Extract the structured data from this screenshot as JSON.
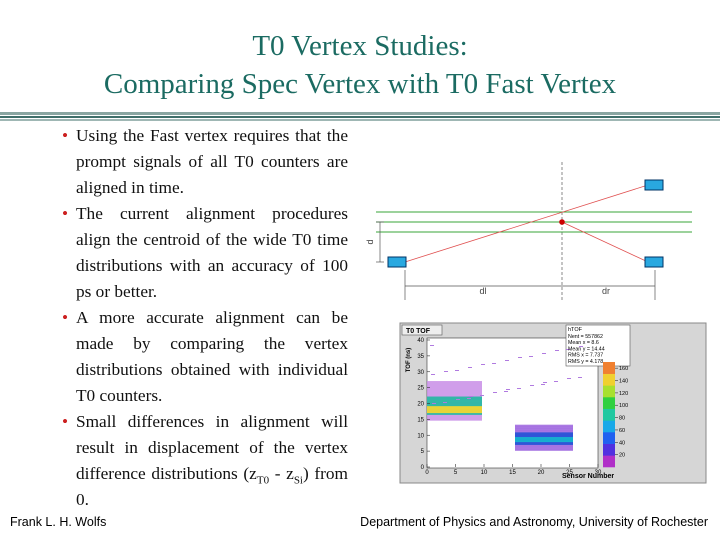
{
  "title": [
    "T0 Vertex Studies:",
    "Comparing Spec Vertex with T0 Fast Vertex"
  ],
  "bullets": [
    [
      {
        "text": "Using the Fast vertex requires that the prompt signals of all T0 counters are aligned in time."
      }
    ],
    [
      {
        "text": "The current alignment procedures align the centroid of the wide T0 time distributions with an accuracy of 100 ps or better."
      }
    ],
    [
      {
        "text": "A more accurate alignment can be made by comparing the vertex distributions obtained with individual T0 counters."
      }
    ],
    [
      {
        "text": "Small differences in alignment will result in displacement of the vertex difference distributions (z"
      },
      {
        "sub": "T0"
      },
      {
        "text": " - z"
      },
      {
        "sub": "Si"
      },
      {
        "text": ") from 0."
      }
    ]
  ],
  "diagram": {
    "d_label": "d",
    "dl_label": "dl",
    "dr_label": "dr"
  },
  "histogram": {
    "title": "T0 TOF",
    "stats_name": "hTOF",
    "stats": [
      "Nent = 557862",
      "Mean x =   8.6",
      "Mean y =  14.44",
      "RMS x =  7.737",
      "RMS y =  4.178"
    ],
    "xlabel": "Sensor Number",
    "ylabel": "TOF (ns)",
    "xlim": [
      0,
      30
    ],
    "xticks": [
      0,
      5,
      10,
      15,
      20,
      25,
      30
    ],
    "ylim": [
      0,
      40
    ],
    "yticks": [
      0,
      5,
      10,
      15,
      20,
      25,
      30,
      35,
      40
    ],
    "zlim": [
      0,
      170
    ],
    "zticks": [
      20,
      40,
      60,
      80,
      100,
      120,
      140,
      160
    ]
  },
  "footer": {
    "left": "Frank L. H. Wolfs",
    "right": "Department of Physics and Astronomy, University of Rochester"
  }
}
